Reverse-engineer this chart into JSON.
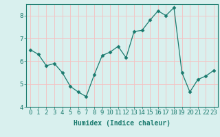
{
  "x": [
    0,
    1,
    2,
    3,
    4,
    5,
    6,
    7,
    8,
    9,
    10,
    11,
    12,
    13,
    14,
    15,
    16,
    17,
    18,
    19,
    20,
    21,
    22,
    23
  ],
  "y": [
    6.5,
    6.3,
    5.8,
    5.9,
    5.5,
    4.9,
    4.65,
    4.45,
    5.4,
    6.25,
    6.4,
    6.65,
    6.15,
    7.3,
    7.35,
    7.8,
    8.2,
    8.0,
    8.35,
    5.5,
    4.65,
    5.2,
    5.35,
    5.6
  ],
  "line_color": "#1a7a6e",
  "marker": "D",
  "marker_size": 2.5,
  "bg_color": "#d9f0ee",
  "grid_color": "#f5c0c0",
  "xlabel": "Humidex (Indice chaleur)",
  "xlabel_fontsize": 7,
  "tick_fontsize": 6.5,
  "ylim": [
    4,
    8.5
  ],
  "xlim": [
    -0.5,
    23.5
  ],
  "yticks": [
    4,
    5,
    6,
    7,
    8
  ],
  "xticks": [
    0,
    1,
    2,
    3,
    4,
    5,
    6,
    7,
    8,
    9,
    10,
    11,
    12,
    13,
    14,
    15,
    16,
    17,
    18,
    19,
    20,
    21,
    22,
    23
  ],
  "spine_color": "#1a7a6e"
}
